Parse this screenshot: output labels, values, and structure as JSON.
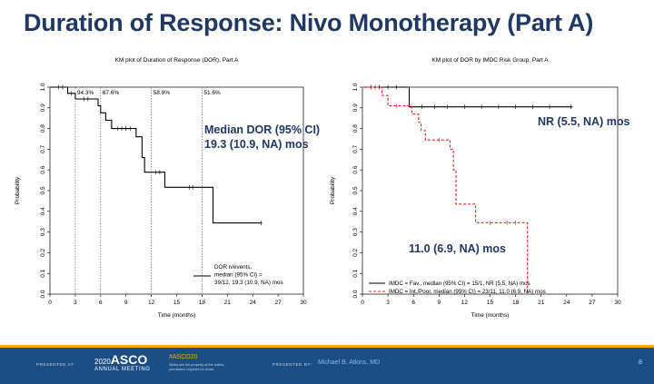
{
  "slide": {
    "title": "Duration of Response: Nivo Monotherapy (Part A)"
  },
  "chart_data": [
    {
      "type": "line",
      "title": "KM plot of Duration of Response (DOR), Part A",
      "xlabel": "Time (months)",
      "ylabel": "Probability",
      "xlim": [
        0,
        30
      ],
      "ylim": [
        0,
        1
      ],
      "xticks": [
        0,
        3,
        6,
        9,
        12,
        15,
        18,
        21,
        24,
        27,
        30
      ],
      "yticks": [
        "0.0",
        "0.1",
        "0.2",
        "0.3",
        "0.4",
        "0.5",
        "0.6",
        "0.7",
        "0.8",
        "0.9",
        "1.0"
      ],
      "grid": false,
      "vlines": [
        3,
        6,
        12,
        18
      ],
      "top_labels": [
        {
          "x": 3,
          "text": "94.3%"
        },
        {
          "x": 6,
          "text": "87.6%"
        },
        {
          "x": 12,
          "text": "58.9%"
        },
        {
          "x": 18,
          "text": "51.6%"
        }
      ],
      "annotation_lines": [
        "Median DOR (95% CI)",
        "19.3 (10.9, NA) mos"
      ],
      "legend_lines": [
        "DOR n/events,",
        "median (95% CI) =",
        "39/12, 19.3 (10.9, NA) mos"
      ],
      "legend_position": "bottom-right",
      "series": [
        {
          "color": "#000000",
          "style": "solid",
          "steps": [
            [
              0,
              1.0
            ],
            [
              2.1,
              0.97
            ],
            [
              3.0,
              0.943
            ],
            [
              5.7,
              0.91
            ],
            [
              6.0,
              0.876
            ],
            [
              6.6,
              0.84
            ],
            [
              7.3,
              0.8
            ],
            [
              10.2,
              0.76
            ],
            [
              10.9,
              0.66
            ],
            [
              11.2,
              0.589
            ],
            [
              13.6,
              0.516
            ],
            [
              19.3,
              0.344
            ],
            [
              25.1,
              0.344
            ]
          ],
          "censors": [
            [
              1.0,
              1.0
            ],
            [
              1.5,
              1.0
            ],
            [
              2.5,
              0.97
            ],
            [
              4.0,
              0.943
            ],
            [
              4.5,
              0.943
            ],
            [
              8.0,
              0.8
            ],
            [
              8.5,
              0.8
            ],
            [
              9.0,
              0.8
            ],
            [
              9.5,
              0.8
            ],
            [
              12.5,
              0.589
            ],
            [
              13.0,
              0.589
            ],
            [
              16.5,
              0.516
            ],
            [
              16.9,
              0.516
            ],
            [
              25.0,
              0.344
            ]
          ]
        }
      ]
    },
    {
      "type": "line",
      "title": "KM plot of DOR by IMDC Risk Group, Part A",
      "xlabel": "Time (months)",
      "ylabel": "Probability",
      "xlim": [
        0,
        30
      ],
      "ylim": [
        0,
        1
      ],
      "xticks": [
        0,
        3,
        6,
        9,
        12,
        15,
        18,
        21,
        24,
        27,
        30
      ],
      "yticks": [
        "0.0",
        "0.1",
        "0.2",
        "0.3",
        "0.4",
        "0.5",
        "0.6",
        "0.7",
        "0.8",
        "0.9",
        "1.0"
      ],
      "grid": false,
      "annotations": [
        {
          "text": "NR (5.5, NA) mos",
          "color": "#1f3864"
        },
        {
          "text": "11.0 (6.9, NA) mos",
          "color": "#1f3864"
        }
      ],
      "legend_position": "bottom",
      "series": [
        {
          "name": "IMDC = Fav., median (95% CI) = 15/1, NR (5.5, NA) mos",
          "color": "#000000",
          "style": "solid",
          "steps": [
            [
              0,
              1.0
            ],
            [
              5.5,
              0.905
            ],
            [
              24.7,
              0.905
            ]
          ],
          "censors": [
            [
              1.0,
              1.0
            ],
            [
              2.0,
              1.0
            ],
            [
              3.0,
              1.0
            ],
            [
              4.0,
              1.0
            ],
            [
              7.0,
              0.905
            ],
            [
              8.5,
              0.905
            ],
            [
              10.0,
              0.905
            ],
            [
              12.0,
              0.905
            ],
            [
              14.0,
              0.905
            ],
            [
              16.0,
              0.905
            ],
            [
              18.0,
              0.905
            ],
            [
              20.0,
              0.905
            ],
            [
              22.0,
              0.905
            ],
            [
              24.5,
              0.905
            ]
          ]
        },
        {
          "name": "IMDC = Int./Poor, median (95% CI) = 23/11, 11.0 (6.9, NA) mos",
          "color": "#e8221b",
          "style": "dashed",
          "steps": [
            [
              0,
              1.0
            ],
            [
              2.3,
              0.96
            ],
            [
              3.0,
              0.91
            ],
            [
              5.8,
              0.87
            ],
            [
              6.6,
              0.83
            ],
            [
              6.9,
              0.79
            ],
            [
              7.4,
              0.745
            ],
            [
              10.3,
              0.7
            ],
            [
              10.7,
              0.6
            ],
            [
              11.0,
              0.435
            ],
            [
              13.3,
              0.345
            ],
            [
              19.4,
              0.0
            ]
          ],
          "censors": [
            [
              1.0,
              1.0
            ],
            [
              1.5,
              1.0
            ],
            [
              4.0,
              0.91
            ],
            [
              9.0,
              0.745
            ],
            [
              15.0,
              0.345
            ],
            [
              17.0,
              0.345
            ],
            [
              18.0,
              0.345
            ]
          ]
        }
      ]
    }
  ],
  "footer": {
    "presented_at": "PRESENTED AT:",
    "logo_year": "2020",
    "logo_brand": "ASCO",
    "meeting": "ANNUAL MEETING",
    "hashtag": "#ASCO20",
    "permission_note": "Slides are the property of the author, permission required for reuse.",
    "presented_by": "PRESENTED BY:",
    "presenter": "Michael B. Atkins, MD",
    "page_number": "8"
  }
}
